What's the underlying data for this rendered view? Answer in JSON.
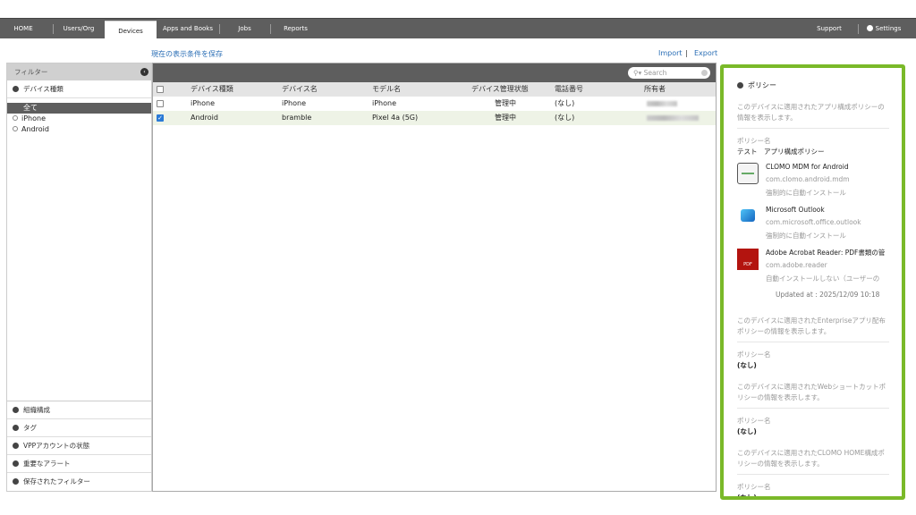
{
  "nav": {
    "tabs": [
      "HOME",
      "Users/Org",
      "Devices",
      "Apps and Books",
      "Jobs",
      "Reports"
    ],
    "active": "Devices",
    "support": "Support",
    "settings": "Settings"
  },
  "toolbar": {
    "save_view": "現在の表示条件を保存",
    "import": "Import",
    "export": "Export",
    "separator": "|"
  },
  "filter": {
    "title": "フィルター",
    "device_type": "デバイス種類",
    "options": [
      "全て",
      "iPhone",
      "Android"
    ],
    "sections": [
      "組織構成",
      "タグ",
      "VPPアカウントの状態",
      "重要なアラート",
      "保存されたフィルター"
    ]
  },
  "table": {
    "search_placeholder": "Search",
    "columns": [
      "デバイス種類",
      "デバイス名",
      "モデル名",
      "デバイス管理状態",
      "電話番号",
      "所有者"
    ],
    "rows": [
      {
        "checked": false,
        "type": "iPhone",
        "name": "iPhone",
        "model": "iPhone",
        "status": "管理中",
        "phone": "(なし)"
      },
      {
        "checked": true,
        "type": "Android",
        "name": "bramble",
        "model": "Pixel 4a (5G)",
        "status": "管理中",
        "phone": "(なし)"
      }
    ]
  },
  "policy": {
    "title": "ポリシー",
    "app_config_desc": "このデバイスに適用されたアプリ構成ポリシーの情報を表示します。",
    "name_label": "ポリシー名",
    "app_config_name": "テスト　アプリ構成ポリシー",
    "apps": [
      {
        "name": "CLOMO MDM for Android",
        "package": "com.clomo.android.mdm",
        "install": "強制的に自動インストール",
        "icon": "clomo-icon"
      },
      {
        "name": "Microsoft Outlook",
        "package": "com.microsoft.office.outlook",
        "install": "強制的に自動インストール",
        "icon": "outlook-icon"
      },
      {
        "name": "Adobe Acrobat Reader: PDF書類の管",
        "package": "com.adobe.reader",
        "install": "自動インストールしない（ユーザーの",
        "icon": "acrobat-icon"
      }
    ],
    "updated": "Updated at : 2025/12/09 10:18",
    "enterprise_desc": "このデバイスに適用されたEnterpriseアプリ配布ポリシーの情報を表示します。",
    "enterprise_value": "(なし)",
    "webclip_desc": "このデバイスに適用されたWebショートカットポリシーの情報を表示します。",
    "webclip_value": "(なし)",
    "home_desc": "このデバイスに適用されたCLOMO HOME構成ポリシーの情報を表示します。",
    "home_value": "(なし)"
  },
  "colors": {
    "accent": "#7ab929",
    "nav": "#5e5e5e",
    "link": "#2a6eb5"
  }
}
